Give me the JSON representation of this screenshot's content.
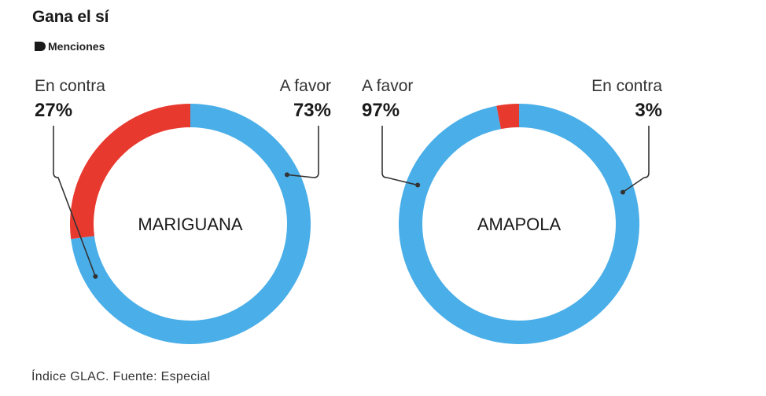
{
  "title": "Gana el sí",
  "subtitle": "Menciones",
  "source": "Índice GLAC. Fuente: Especial",
  "colors": {
    "a_favor": "#4aaee8",
    "en_contra": "#e8392f",
    "text": "#1a1a1a",
    "leader": "#333333"
  },
  "chart_data": [
    {
      "type": "pie",
      "title": "MARIGUANA",
      "slices": [
        {
          "label": "A favor",
          "value": 73,
          "value_text": "73%",
          "color": "#4aaee8"
        },
        {
          "label": "En contra",
          "value": 27,
          "value_text": "27%",
          "color": "#e8392f"
        }
      ]
    },
    {
      "type": "pie",
      "title": "AMAPOLA",
      "slices": [
        {
          "label": "A favor",
          "value": 97,
          "value_text": "97%",
          "color": "#4aaee8"
        },
        {
          "label": "En contra",
          "value": 3,
          "value_text": "3%",
          "color": "#e8392f"
        }
      ]
    }
  ]
}
